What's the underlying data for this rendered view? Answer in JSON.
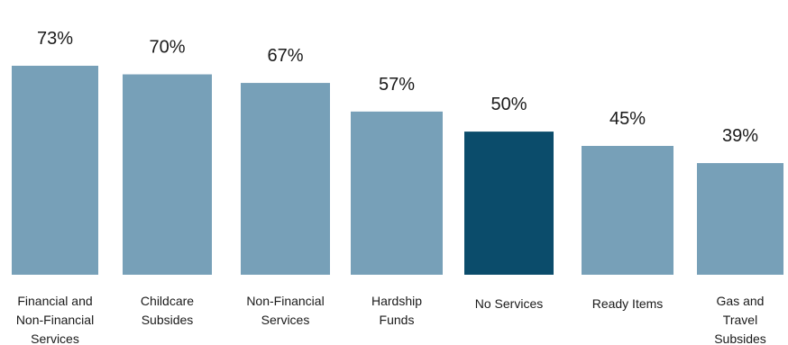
{
  "chart_data": {
    "type": "bar",
    "categories": [
      "Financial and Non-Financial Services",
      "Childcare Subsides",
      "Non-Financial Services",
      "Hardship Funds",
      "No Services",
      "Ready Items",
      "Gas and Travel Subsides"
    ],
    "category_lines": [
      [
        "Financial and",
        "Non-Financial",
        "Services"
      ],
      [
        "Childcare",
        "Subsides"
      ],
      [
        "Non-Financial",
        "Services"
      ],
      [
        "Hardship",
        "Funds"
      ],
      [
        "No Services"
      ],
      [
        "Ready Items"
      ],
      [
        "Gas and",
        "Travel",
        "Subsides"
      ]
    ],
    "values": [
      73,
      70,
      67,
      57,
      50,
      45,
      39
    ],
    "value_labels": [
      "73%",
      "70%",
      "67%",
      "57%",
      "50%",
      "45%",
      "39%"
    ],
    "highlight_index": 4,
    "title": "",
    "xlabel": "",
    "ylabel": "",
    "ylim": [
      0,
      73
    ],
    "grid": false,
    "colors": {
      "bar": "#77a0b8",
      "highlight": "#0b4c6b",
      "text": "#1a1a1a"
    }
  }
}
